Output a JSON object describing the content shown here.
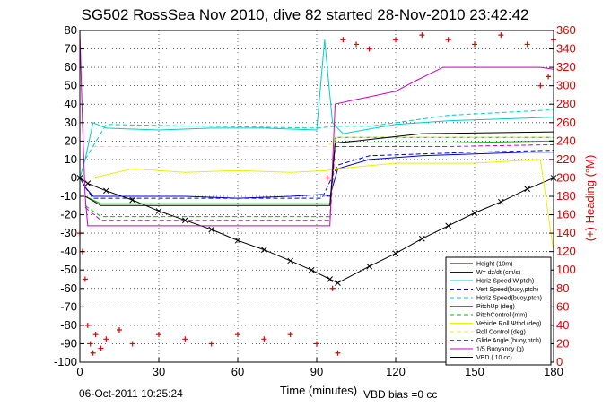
{
  "chart_data": {
    "type": "line",
    "title": "SG502 RossSea Nov 2010, dive 82 started 28-Nov-2010 23:42:42",
    "xlabel": "Time (minutes)",
    "ylabel_right": "(+) Heading (°M)",
    "xlim": [
      0,
      180
    ],
    "ylim": [
      -100,
      80
    ],
    "ylim_right": [
      0,
      360
    ],
    "x_ticks": [
      "0",
      "30",
      "60",
      "90",
      "120",
      "150",
      "180"
    ],
    "y_ticks": [
      "80",
      "70",
      "60",
      "50",
      "40",
      "30",
      "20",
      "10",
      "0",
      "-10",
      "-20",
      "-30",
      "-40",
      "-50",
      "-60",
      "-70",
      "-80",
      "-90",
      "-100"
    ],
    "y2_ticks": [
      "360",
      "340",
      "320",
      "300",
      "280",
      "260",
      "240",
      "220",
      "200",
      "180",
      "160",
      "140",
      "120",
      "100",
      "80",
      "60",
      "40",
      "20",
      "0"
    ],
    "grid": true,
    "legend_position": "bottom-right",
    "footer_left": "06-Oct-2011 10:25:24",
    "footer_right": "VBD bias =0 cc",
    "series": [
      {
        "name": "Height (10m)",
        "color": "#000000",
        "style": "solid",
        "marker": "x",
        "x": [
          0,
          3,
          10,
          20,
          30,
          40,
          50,
          60,
          70,
          80,
          88,
          95,
          98,
          110,
          120,
          130,
          140,
          150,
          160,
          170,
          180
        ],
        "y": [
          0,
          -3,
          -7,
          -12,
          -18,
          -23,
          -28,
          -34,
          -39,
          -45,
          -50,
          -55,
          -57,
          -48,
          -41,
          -33,
          -26,
          -19,
          -13,
          -6,
          0
        ]
      },
      {
        "name": "W= dz/dt (cm/s)",
        "color": "#0000cc",
        "style": "solid",
        "x": [
          0,
          2,
          5,
          20,
          40,
          60,
          80,
          92,
          95,
          98,
          110,
          130,
          150,
          170,
          180
        ],
        "y": [
          0,
          -5,
          -10,
          -10,
          -10,
          -11,
          -10,
          -9,
          -10,
          5,
          10,
          12,
          13,
          14,
          14
        ]
      },
      {
        "name": "Horiz Speed W,ptch)",
        "color": "#00cccc",
        "style": "solid",
        "x": [
          0,
          2,
          5,
          10,
          30,
          50,
          70,
          90,
          93,
          96,
          100,
          120,
          140,
          160,
          180
        ],
        "y": [
          0,
          10,
          30,
          27,
          26,
          27,
          27,
          26,
          75,
          30,
          24,
          29,
          31,
          32,
          33
        ]
      },
      {
        "name": "Vert Speed(buoy,ptch)",
        "color": "#0000cc",
        "style": "dashed",
        "x": [
          2,
          5,
          40,
          80,
          92,
          98,
          110,
          150,
          180
        ],
        "y": [
          -5,
          -11,
          -11,
          -11,
          -11,
          7,
          12,
          14,
          15
        ]
      },
      {
        "name": "Horiz Speed(buoy,ptch)",
        "color": "#00cccc",
        "style": "dashed",
        "x": [
          2,
          10,
          50,
          90,
          97,
          110,
          140,
          180
        ],
        "y": [
          10,
          29,
          28,
          27,
          28,
          28,
          34,
          37
        ]
      },
      {
        "name": "PitchUp (deg)",
        "color": "#00bb00",
        "style": "solid",
        "x": [
          2,
          8,
          50,
          95,
          97,
          140,
          180
        ],
        "y": [
          -10,
          -14,
          -14,
          -14,
          19,
          19,
          20
        ]
      },
      {
        "name": "PitchControl (mm)",
        "color": "#00bb00",
        "style": "dashed",
        "x": [
          2,
          8,
          50,
          95,
          97,
          140,
          180
        ],
        "y": [
          -15,
          -21,
          -21,
          -21,
          22,
          22,
          22
        ]
      },
      {
        "name": "Vehicle Roll Ψtbd (deg)",
        "color": "#eeee00",
        "style": "solid",
        "x": [
          5,
          20,
          40,
          60,
          80,
          94,
          98,
          120,
          150,
          175,
          180
        ],
        "y": [
          0,
          5,
          3,
          4,
          3,
          4,
          5,
          8,
          8,
          10,
          -40
        ]
      },
      {
        "name": "Roll Control (deg)",
        "color": "#eeee00",
        "style": "dashed",
        "x": [
          5,
          30,
          60,
          94,
          98,
          140,
          180
        ],
        "y": [
          17,
          17,
          17,
          17,
          22,
          22,
          22
        ]
      },
      {
        "name": "Glide Angle (buoy,ptch)",
        "color": "#cc00cc",
        "style": "dashed",
        "x": [
          2,
          8,
          50,
          95,
          97,
          140,
          180
        ],
        "y": [
          -16,
          -23,
          -23,
          -23,
          17,
          17,
          18
        ]
      },
      {
        "name": "1/5 Buoyancy (g)",
        "color": "#cc00cc",
        "style": "solid",
        "x": [
          0,
          1,
          2,
          3,
          95,
          97,
          103,
          110,
          120,
          128,
          138,
          175,
          180
        ],
        "y": [
          80,
          30,
          -10,
          -26,
          -26,
          40,
          42,
          44,
          47,
          53,
          60,
          60,
          59
        ]
      },
      {
        "name": "VBD ( 10 cc)",
        "color": "#000000",
        "style": "solid",
        "x": [
          2,
          8,
          50,
          95,
          97,
          105,
          130,
          180
        ],
        "y": [
          -10,
          -15,
          -15,
          -15,
          19,
          20,
          24,
          25
        ]
      }
    ],
    "heading_series": {
      "name": "(+) Heading (°M)",
      "color": "#e00000",
      "marker": "+",
      "x": [
        0,
        1,
        2,
        3,
        4,
        5,
        6,
        8,
        10,
        15,
        20,
        30,
        40,
        50,
        60,
        70,
        80,
        90,
        94,
        96,
        98,
        100,
        105,
        110,
        120,
        130,
        140,
        150,
        160,
        170,
        175,
        178,
        180
      ],
      "y": [
        140,
        120,
        90,
        40,
        20,
        10,
        30,
        15,
        25,
        35,
        20,
        30,
        25,
        20,
        30,
        25,
        30,
        20,
        200,
        80,
        10,
        350,
        345,
        340,
        350,
        355,
        350,
        345,
        355,
        345,
        300,
        310,
        350
      ]
    }
  }
}
